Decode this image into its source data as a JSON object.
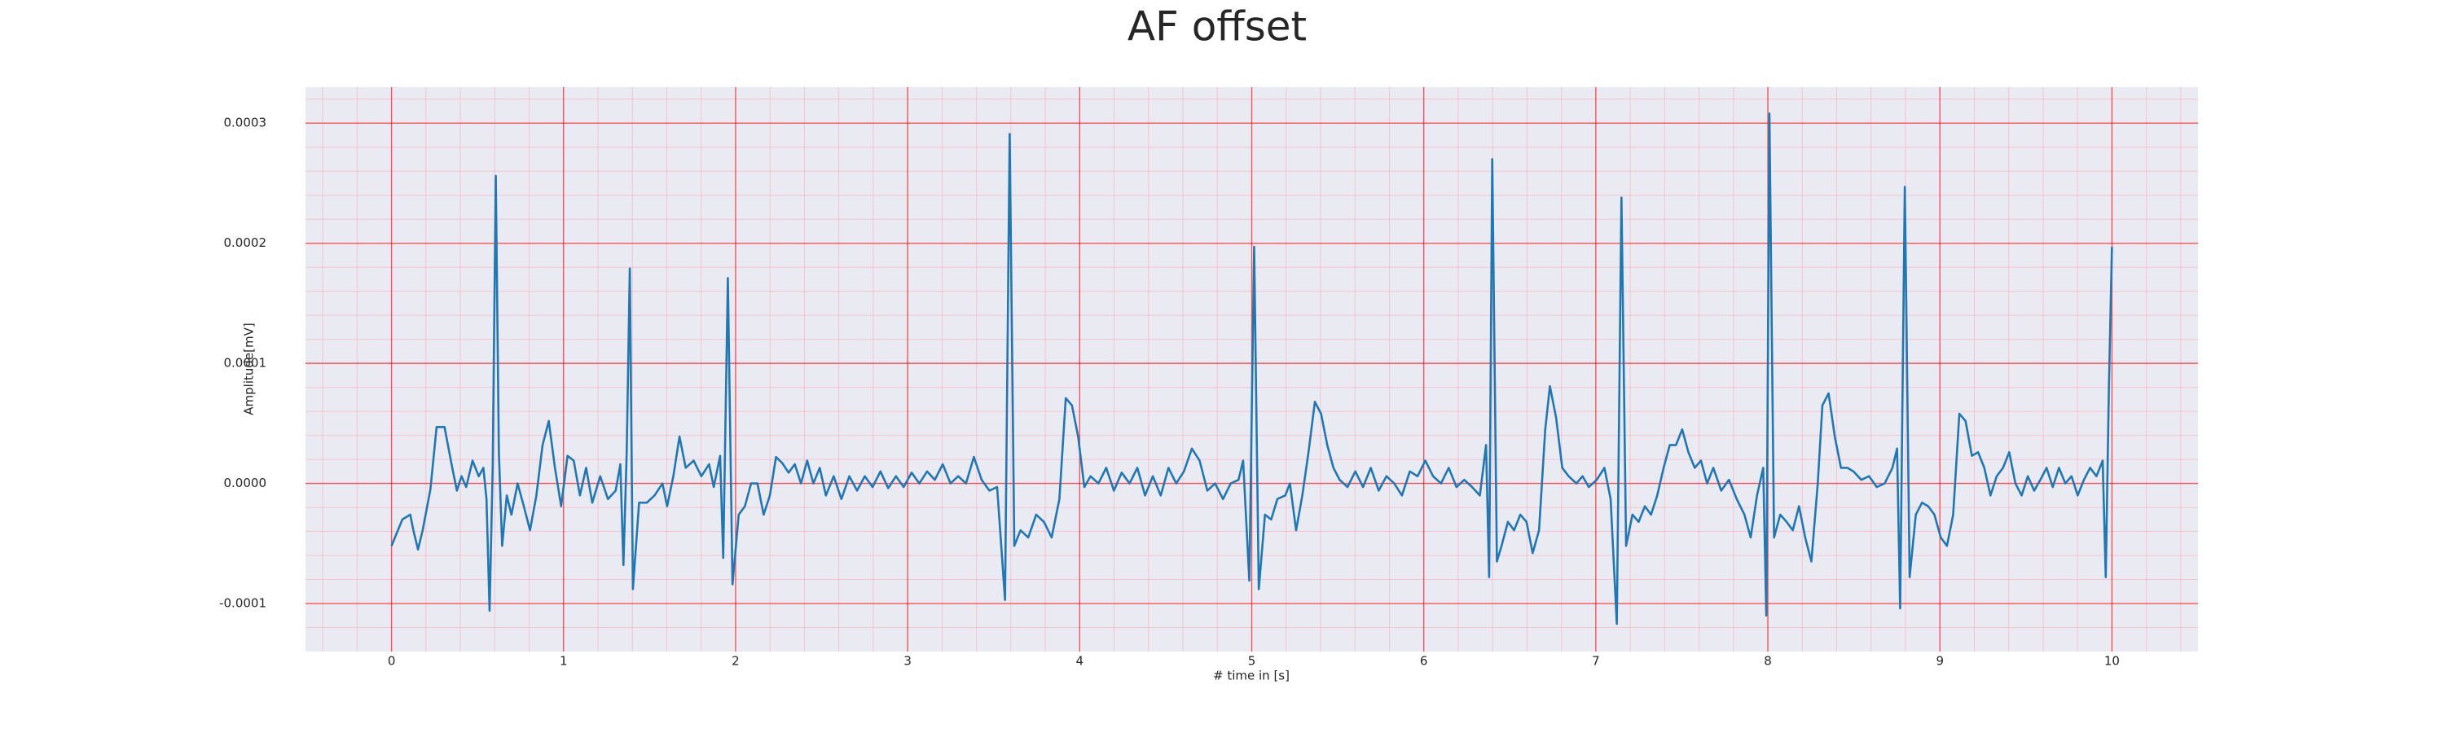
{
  "chart_data": {
    "type": "line",
    "title": "AF offset",
    "x_label": "# time in [s]",
    "y_label": "Amplitude[mV]",
    "color": "#1f77b4",
    "grid": true,
    "minor_grid": true,
    "xlim": [
      -0.5,
      10.5
    ],
    "ylim": [
      -0.00014,
      0.00033
    ],
    "xticks": [
      0,
      1,
      2,
      3,
      4,
      5,
      6,
      7,
      8,
      9,
      10
    ],
    "yticks": [
      -0.0001,
      {
        "value": 0,
        "label": "0.0000"
      },
      0.0001,
      0.0002,
      0.0003
    ],
    "x": [
      0,
      0.063,
      0.109,
      0.127,
      0.154,
      0.181,
      0.226,
      0.262,
      0.308,
      0.353,
      0.38,
      0.407,
      0.434,
      0.471,
      0.507,
      0.534,
      0.552,
      0.57,
      0.588,
      0.606,
      0.624,
      0.643,
      0.67,
      0.697,
      0.733,
      0.769,
      0.805,
      0.842,
      0.878,
      0.914,
      0.95,
      0.986,
      1.023,
      1.059,
      1.095,
      1.131,
      1.167,
      1.213,
      1.258,
      1.303,
      1.33,
      1.348,
      1.367,
      1.385,
      1.403,
      1.439,
      1.484,
      1.529,
      1.575,
      1.602,
      1.638,
      1.674,
      1.71,
      1.756,
      1.801,
      1.846,
      1.873,
      1.91,
      1.928,
      1.955,
      1.982,
      2.018,
      2.054,
      2.09,
      2.127,
      2.163,
      2.199,
      2.235,
      2.271,
      2.308,
      2.344,
      2.38,
      2.416,
      2.452,
      2.489,
      2.525,
      2.57,
      2.615,
      2.661,
      2.706,
      2.751,
      2.796,
      2.842,
      2.887,
      2.932,
      2.977,
      3.023,
      3.068,
      3.113,
      3.158,
      3.204,
      3.249,
      3.294,
      3.339,
      3.385,
      3.43,
      3.475,
      3.52,
      3.566,
      3.593,
      3.62,
      3.656,
      3.701,
      3.747,
      3.792,
      3.837,
      3.882,
      3.919,
      3.955,
      3.991,
      4.027,
      4.063,
      4.109,
      4.154,
      4.199,
      4.244,
      4.29,
      4.335,
      4.38,
      4.425,
      4.471,
      4.516,
      4.561,
      4.606,
      4.652,
      4.697,
      4.742,
      4.787,
      4.833,
      4.878,
      4.923,
      4.95,
      4.986,
      5.014,
      5.041,
      5.077,
      5.113,
      5.149,
      5.195,
      5.222,
      5.258,
      5.294,
      5.33,
      5.367,
      5.403,
      5.439,
      5.475,
      5.511,
      5.557,
      5.602,
      5.647,
      5.692,
      5.738,
      5.783,
      5.828,
      5.873,
      5.919,
      5.964,
      6.009,
      6.054,
      6.1,
      6.145,
      6.19,
      6.235,
      6.281,
      6.326,
      6.362,
      6.38,
      6.398,
      6.425,
      6.452,
      6.489,
      6.525,
      6.561,
      6.597,
      6.633,
      6.67,
      6.706,
      6.733,
      6.769,
      6.805,
      6.842,
      6.887,
      6.923,
      6.959,
      7.005,
      7.05,
      7.086,
      7.122,
      7.149,
      7.176,
      7.213,
      7.249,
      7.285,
      7.321,
      7.357,
      7.394,
      7.43,
      7.466,
      7.502,
      7.538,
      7.575,
      7.611,
      7.647,
      7.683,
      7.729,
      7.774,
      7.819,
      7.864,
      7.9,
      7.937,
      7.973,
      7.991,
      8.009,
      8.036,
      8.072,
      8.109,
      8.145,
      8.181,
      8.217,
      8.253,
      8.29,
      8.317,
      8.353,
      8.389,
      8.425,
      8.462,
      8.498,
      8.543,
      8.588,
      8.633,
      8.679,
      8.724,
      8.751,
      8.769,
      8.796,
      8.824,
      8.86,
      8.896,
      8.932,
      8.968,
      9.005,
      9.041,
      9.077,
      9.113,
      9.149,
      9.186,
      9.222,
      9.258,
      9.294,
      9.33,
      9.367,
      9.403,
      9.439,
      9.475,
      9.511,
      9.548,
      9.584,
      9.62,
      9.656,
      9.692,
      9.729,
      9.765,
      9.801,
      9.837,
      9.873,
      9.91,
      9.946,
      9.964,
      9.982,
      10.0
    ],
    "values": [
      -5.2e-05,
      -3e-05,
      -2.6e-05,
      -3.9e-05,
      -5.5e-05,
      -3.9e-05,
      -5e-06,
      4.7e-05,
      4.7e-05,
      1.3e-05,
      -6e-06,
      6e-06,
      -3e-06,
      1.9e-05,
      6e-06,
      1.3e-05,
      -1.3e-05,
      -0.000106,
      1.3e-05,
      0.000256,
      2.6e-05,
      -5.2e-05,
      -1e-05,
      -2.6e-05,
      0,
      -1.9e-05,
      -3.9e-05,
      -1e-05,
      3.2e-05,
      5.2e-05,
      1.3e-05,
      -1.9e-05,
      2.3e-05,
      1.9e-05,
      -1e-05,
      1.3e-05,
      -1.6e-05,
      6e-06,
      -1.3e-05,
      -6e-06,
      1.6e-05,
      -6.8e-05,
      2.6e-05,
      0.000179,
      -8.8e-05,
      -1.6e-05,
      -1.6e-05,
      -1e-05,
      0,
      -1.9e-05,
      6e-06,
      3.9e-05,
      1.3e-05,
      1.9e-05,
      6e-06,
      1.6e-05,
      -3e-06,
      2.3e-05,
      -6.2e-05,
      0.000171,
      -8.4e-05,
      -2.6e-05,
      -1.9e-05,
      0,
      0,
      -2.6e-05,
      -1e-05,
      2.2e-05,
      1.7e-05,
      9e-06,
      1.6e-05,
      0,
      1.9e-05,
      0,
      1.3e-05,
      -1e-05,
      6e-06,
      -1.3e-05,
      6e-06,
      -6e-06,
      6e-06,
      -3e-06,
      1e-05,
      -4e-06,
      6e-06,
      -3e-06,
      9e-06,
      0,
      1e-05,
      3e-06,
      1.6e-05,
      0,
      6e-06,
      0,
      2.2e-05,
      3e-06,
      -6e-06,
      -3e-06,
      -9.7e-05,
      0.000291,
      -5.2e-05,
      -3.9e-05,
      -4.5e-05,
      -2.6e-05,
      -3.2e-05,
      -4.5e-05,
      -1.3e-05,
      7.1e-05,
      6.5e-05,
      3.9e-05,
      -3e-06,
      6e-06,
      0,
      1.3e-05,
      -6e-06,
      9e-06,
      0,
      1.3e-05,
      -1e-05,
      6e-06,
      -1e-05,
      1.3e-05,
      0,
      1e-05,
      2.9e-05,
      1.9e-05,
      -6e-06,
      0,
      -1.3e-05,
      0,
      3e-06,
      1.9e-05,
      -8.1e-05,
      0.000197,
      -8.8e-05,
      -2.6e-05,
      -3e-05,
      -1.3e-05,
      -1e-05,
      0,
      -3.9e-05,
      -1e-05,
      2.6e-05,
      6.8e-05,
      5.8e-05,
      3.2e-05,
      1.3e-05,
      3e-06,
      -3e-06,
      1e-05,
      -3e-06,
      1.3e-05,
      -6e-06,
      6e-06,
      0,
      -1e-05,
      1e-05,
      6e-06,
      1.9e-05,
      6e-06,
      0,
      1.3e-05,
      -3e-06,
      3e-06,
      -3e-06,
      -1e-05,
      3.2e-05,
      -7.8e-05,
      0.00027,
      -6.5e-05,
      -5.2e-05,
      -3.2e-05,
      -3.9e-05,
      -2.6e-05,
      -3.2e-05,
      -5.8e-05,
      -3.9e-05,
      4.5e-05,
      8.1e-05,
      5.5e-05,
      1.3e-05,
      6e-06,
      0,
      6e-06,
      -3e-06,
      3e-06,
      1.3e-05,
      -1.3e-05,
      -0.000117,
      0.000238,
      -5.2e-05,
      -2.6e-05,
      -3.2e-05,
      -1.9e-05,
      -2.6e-05,
      -1e-05,
      1.3e-05,
      3.2e-05,
      3.2e-05,
      4.5e-05,
      2.6e-05,
      1.3e-05,
      1.9e-05,
      0,
      1.3e-05,
      -6e-06,
      3e-06,
      -1.3e-05,
      -2.6e-05,
      -4.5e-05,
      -1e-05,
      1.3e-05,
      -0.00011,
      0.000308,
      -4.5e-05,
      -2.6e-05,
      -3.2e-05,
      -3.9e-05,
      -1.9e-05,
      -4.5e-05,
      -6.5e-05,
      0,
      6.5e-05,
      7.5e-05,
      3.9e-05,
      1.3e-05,
      1.3e-05,
      1e-05,
      3e-06,
      6e-06,
      -3e-06,
      0,
      1.3e-05,
      2.9e-05,
      -0.000104,
      0.000247,
      -7.8e-05,
      -2.6e-05,
      -1.6e-05,
      -1.9e-05,
      -2.6e-05,
      -4.5e-05,
      -5.2e-05,
      -2.6e-05,
      5.8e-05,
      5.2e-05,
      2.3e-05,
      2.6e-05,
      1.3e-05,
      -1e-05,
      6e-06,
      1.3e-05,
      2.6e-05,
      0,
      -1e-05,
      6e-06,
      -6e-06,
      3e-06,
      1.3e-05,
      -3e-06,
      1.3e-05,
      0,
      6e-06,
      -1e-05,
      3e-06,
      1.3e-05,
      6e-06,
      1.9e-05,
      -7.8e-05,
      7.8e-05,
      0.000197
    ]
  }
}
